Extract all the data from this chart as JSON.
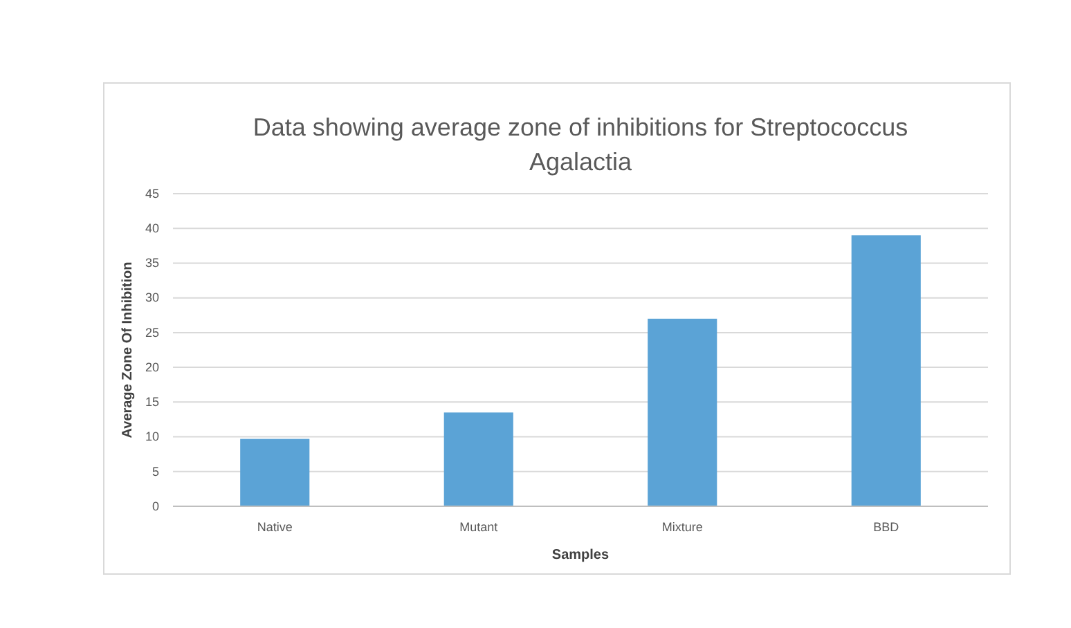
{
  "chart_data": {
    "type": "bar",
    "title": "Data showing average zone of inhibitions for Streptococcus Agalactia",
    "xlabel": "Samples",
    "ylabel": "Average Zone Of Inhibition",
    "categories": [
      "Native",
      "Mutant",
      "Mixture",
      "BBD"
    ],
    "values": [
      9.7,
      13.5,
      27,
      39
    ],
    "color": "#5ba3d6",
    "ylim": [
      0,
      45
    ],
    "yticks": [
      0,
      5,
      10,
      15,
      20,
      25,
      30,
      35,
      40,
      45
    ],
    "grid": "y"
  }
}
